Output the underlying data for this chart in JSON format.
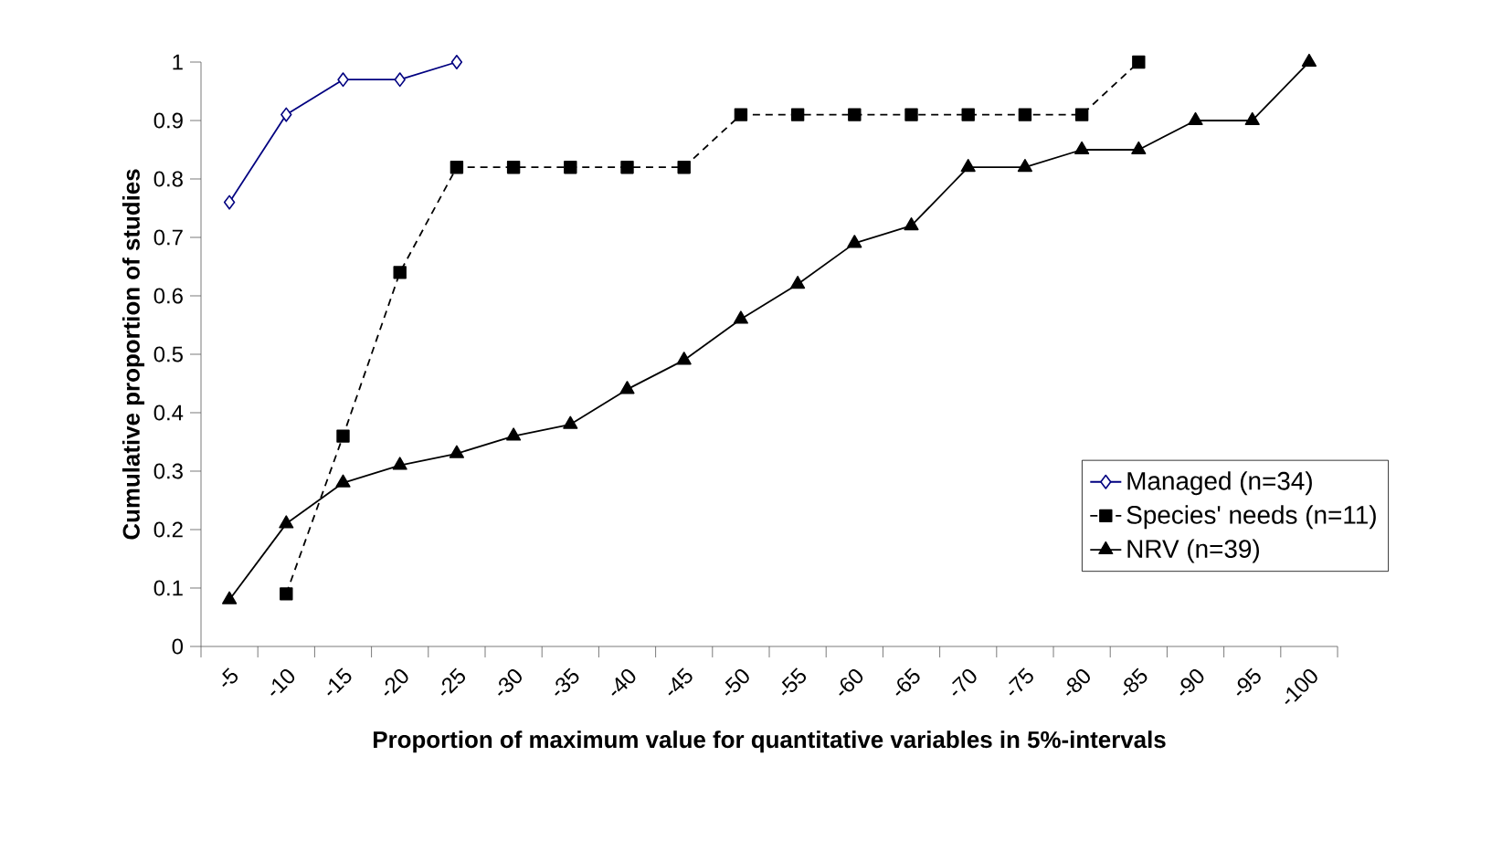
{
  "chart_data": {
    "type": "line",
    "xlabel": "Proportion of maximum value for quantitative variables in 5%-intervals",
    "ylabel": "Cumulative proportion of studies",
    "categories": [
      "-5",
      "-10",
      "-15",
      "-20",
      "-25",
      "-30",
      "-35",
      "-40",
      "-45",
      "-50",
      "-55",
      "-60",
      "-65",
      "-70",
      "-75",
      "-80",
      "-85",
      "-90",
      "-95",
      "-100"
    ],
    "series": [
      {
        "name": "Managed (n=34)",
        "color": "#000080",
        "marker": "diamond",
        "line_style": "solid",
        "values": [
          0.76,
          0.91,
          0.97,
          0.97,
          1.0,
          null,
          null,
          null,
          null,
          null,
          null,
          null,
          null,
          null,
          null,
          null,
          null,
          null,
          null,
          null
        ]
      },
      {
        "name": "Species' needs (n=11)",
        "color": "#000000",
        "marker": "square",
        "line_style": "dashed",
        "values": [
          null,
          0.09,
          0.36,
          0.64,
          0.82,
          0.82,
          0.82,
          0.82,
          0.82,
          0.91,
          0.91,
          0.91,
          0.91,
          0.91,
          0.91,
          0.91,
          1.0,
          null,
          null,
          null
        ]
      },
      {
        "name": "NRV (n=39)",
        "color": "#000000",
        "marker": "triangle",
        "line_style": "solid",
        "values": [
          0.08,
          0.21,
          0.28,
          0.31,
          0.33,
          0.36,
          0.38,
          0.44,
          0.49,
          0.56,
          0.62,
          0.69,
          0.72,
          0.82,
          0.82,
          0.85,
          0.85,
          0.9,
          0.9,
          1.0
        ]
      }
    ],
    "ylim": [
      0,
      1
    ],
    "yticks": [
      0,
      0.1,
      0.2,
      0.3,
      0.4,
      0.5,
      0.6,
      0.7,
      0.8,
      0.9,
      1
    ],
    "grid": false,
    "legend": "bottom right"
  }
}
